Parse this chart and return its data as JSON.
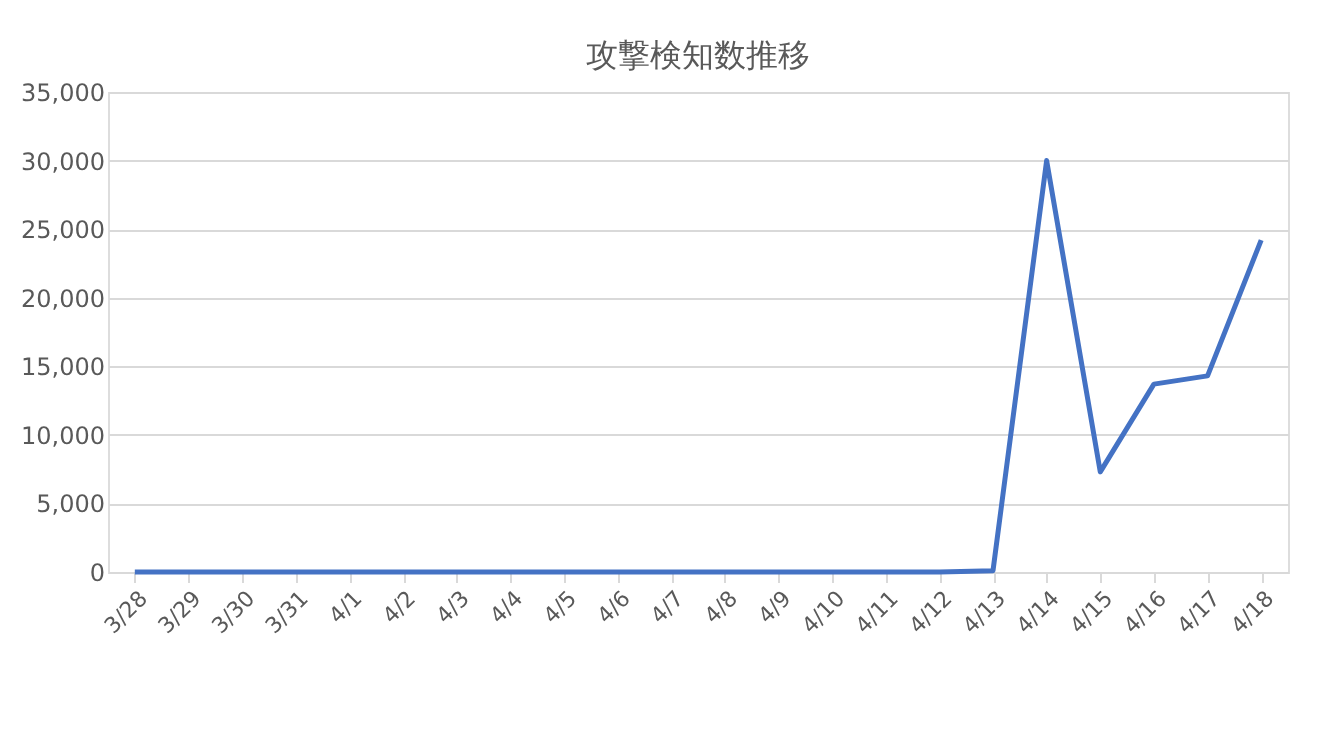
{
  "chart_data": {
    "type": "line",
    "title": "攻撃検知数推移",
    "categories": [
      "3/28",
      "3/29",
      "3/30",
      "3/31",
      "4/1",
      "4/2",
      "4/3",
      "4/4",
      "4/5",
      "4/6",
      "4/7",
      "4/8",
      "4/9",
      "4/10",
      "4/11",
      "4/12",
      "4/13",
      "4/14",
      "4/15",
      "4/16",
      "4/17",
      "4/18"
    ],
    "series": [
      {
        "color": "#4472c4",
        "values": [
          0,
          0,
          0,
          0,
          0,
          0,
          0,
          0,
          0,
          0,
          0,
          0,
          0,
          0,
          0,
          0,
          100,
          30000,
          7300,
          13700,
          14300,
          24200
        ]
      }
    ],
    "ylim": [
      0,
      35000
    ],
    "yticks": [
      0,
      {
        "value": 5000,
        "label": "5,000"
      },
      {
        "value": 10000,
        "label": "10,000"
      },
      {
        "value": 15000,
        "label": "15,000"
      },
      {
        "value": 20000,
        "label": "20,000"
      },
      {
        "value": 25000,
        "label": "25,000"
      },
      {
        "value": 30000,
        "label": "30,000"
      },
      {
        "value": 35000,
        "label": "35,000"
      }
    ],
    "grid": "y",
    "marker": "none",
    "line_style": "solid"
  }
}
